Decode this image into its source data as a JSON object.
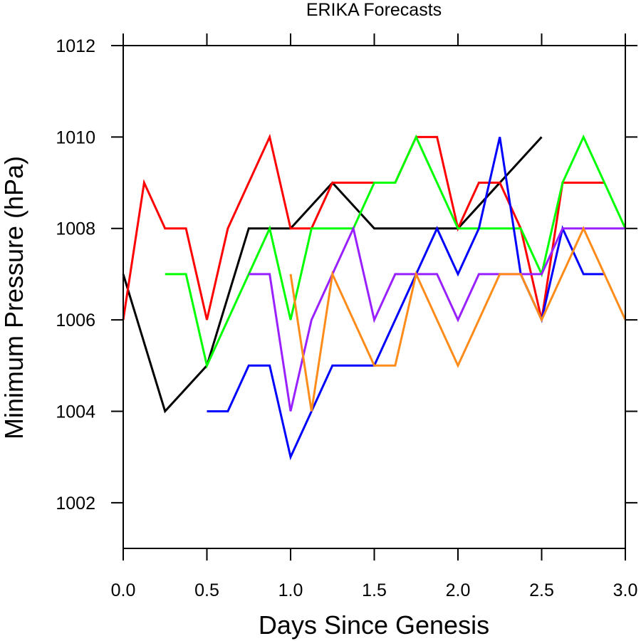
{
  "chart_data": {
    "type": "line",
    "title": "ERIKA Forecasts",
    "xlabel": "Days Since Genesis",
    "ylabel": "Minimum Pressure (hPa)",
    "xlim": [
      0,
      3
    ],
    "ylim": [
      1001,
      1012
    ],
    "x_ticks": [
      "0.0",
      "0.5",
      "1.0",
      "1.5",
      "2.0",
      "2.5",
      "3.0"
    ],
    "y_ticks": [
      "1002",
      "1004",
      "1006",
      "1008",
      "1010",
      "1012"
    ],
    "grid": false,
    "legend": "none",
    "series": [
      {
        "color": "#000000",
        "points": [
          [
            0,
            1007
          ],
          [
            0.25,
            1004
          ],
          [
            0.5,
            1005
          ],
          [
            0.75,
            1008
          ],
          [
            1.0,
            1008
          ],
          [
            1.25,
            1009
          ],
          [
            1.5,
            1008
          ],
          [
            1.75,
            1008
          ],
          [
            2.0,
            1008
          ],
          [
            2.25,
            1009
          ],
          [
            2.5,
            1010
          ]
        ]
      },
      {
        "color": "#ff0000",
        "points": [
          [
            0,
            1006
          ],
          [
            0.125,
            1009
          ],
          [
            0.25,
            1008
          ],
          [
            0.375,
            1008
          ],
          [
            0.5,
            1006
          ],
          [
            0.625,
            1008
          ],
          [
            0.75,
            1009
          ],
          [
            0.875,
            1010
          ],
          [
            1.0,
            1008
          ],
          [
            1.125,
            1008
          ],
          [
            1.25,
            1009
          ],
          [
            1.375,
            1009
          ],
          [
            1.5,
            1009
          ],
          [
            1.625,
            1009
          ],
          [
            1.75,
            1010
          ],
          [
            1.875,
            1010
          ],
          [
            2.0,
            1008
          ],
          [
            2.125,
            1009
          ],
          [
            2.25,
            1009
          ],
          [
            2.375,
            1008
          ],
          [
            2.5,
            1006
          ],
          [
            2.625,
            1009
          ],
          [
            2.75,
            1009
          ],
          [
            2.875,
            1009
          ]
        ]
      },
      {
        "color": "#00ff00",
        "points": [
          [
            0.25,
            1007
          ],
          [
            0.375,
            1007
          ],
          [
            0.5,
            1005
          ],
          [
            0.625,
            1006
          ],
          [
            0.75,
            1007
          ],
          [
            0.875,
            1008
          ],
          [
            1.0,
            1006
          ],
          [
            1.125,
            1008
          ],
          [
            1.25,
            1008
          ],
          [
            1.375,
            1008
          ],
          [
            1.5,
            1009
          ],
          [
            1.625,
            1009
          ],
          [
            1.75,
            1010
          ],
          [
            1.875,
            1009
          ],
          [
            2.0,
            1008
          ],
          [
            2.125,
            1008
          ],
          [
            2.25,
            1008
          ],
          [
            2.375,
            1008
          ],
          [
            2.5,
            1007
          ],
          [
            2.625,
            1009
          ],
          [
            2.75,
            1010
          ],
          [
            2.875,
            1009
          ],
          [
            3.0,
            1008
          ]
        ]
      },
      {
        "color": "#0000ff",
        "points": [
          [
            0.5,
            1004
          ],
          [
            0.625,
            1004
          ],
          [
            0.75,
            1005
          ],
          [
            0.875,
            1005
          ],
          [
            1.0,
            1003
          ],
          [
            1.125,
            1004
          ],
          [
            1.25,
            1005
          ],
          [
            1.375,
            1005
          ],
          [
            1.5,
            1005
          ],
          [
            1.625,
            1006
          ],
          [
            1.75,
            1007
          ],
          [
            1.875,
            1008
          ],
          [
            2.0,
            1007
          ],
          [
            2.125,
            1008
          ],
          [
            2.25,
            1010
          ],
          [
            2.375,
            1007
          ],
          [
            2.5,
            1006
          ],
          [
            2.625,
            1008
          ],
          [
            2.75,
            1007
          ],
          [
            2.875,
            1007
          ]
        ]
      },
      {
        "color": "#9a21ff",
        "points": [
          [
            0.75,
            1007
          ],
          [
            0.875,
            1007
          ],
          [
            1.0,
            1004
          ],
          [
            1.125,
            1006
          ],
          [
            1.25,
            1007
          ],
          [
            1.375,
            1008
          ],
          [
            1.5,
            1006
          ],
          [
            1.625,
            1007
          ],
          [
            1.75,
            1007
          ],
          [
            1.875,
            1007
          ],
          [
            2.0,
            1006
          ],
          [
            2.125,
            1007
          ],
          [
            2.25,
            1007
          ],
          [
            2.375,
            1007
          ],
          [
            2.5,
            1007
          ],
          [
            2.625,
            1008
          ],
          [
            2.75,
            1008
          ],
          [
            2.875,
            1008
          ],
          [
            3.0,
            1008
          ]
        ]
      },
      {
        "color": "#ff8c1a",
        "points": [
          [
            1.0,
            1007
          ],
          [
            1.125,
            1004
          ],
          [
            1.25,
            1007
          ],
          [
            1.375,
            1006
          ],
          [
            1.5,
            1005
          ],
          [
            1.625,
            1005
          ],
          [
            1.75,
            1007
          ],
          [
            1.875,
            1006
          ],
          [
            2.0,
            1005
          ],
          [
            2.125,
            1006
          ],
          [
            2.25,
            1007
          ],
          [
            2.375,
            1007
          ],
          [
            2.5,
            1006
          ],
          [
            2.625,
            1007
          ],
          [
            2.75,
            1008
          ],
          [
            2.875,
            1007
          ],
          [
            3.0,
            1006
          ]
        ]
      }
    ]
  }
}
